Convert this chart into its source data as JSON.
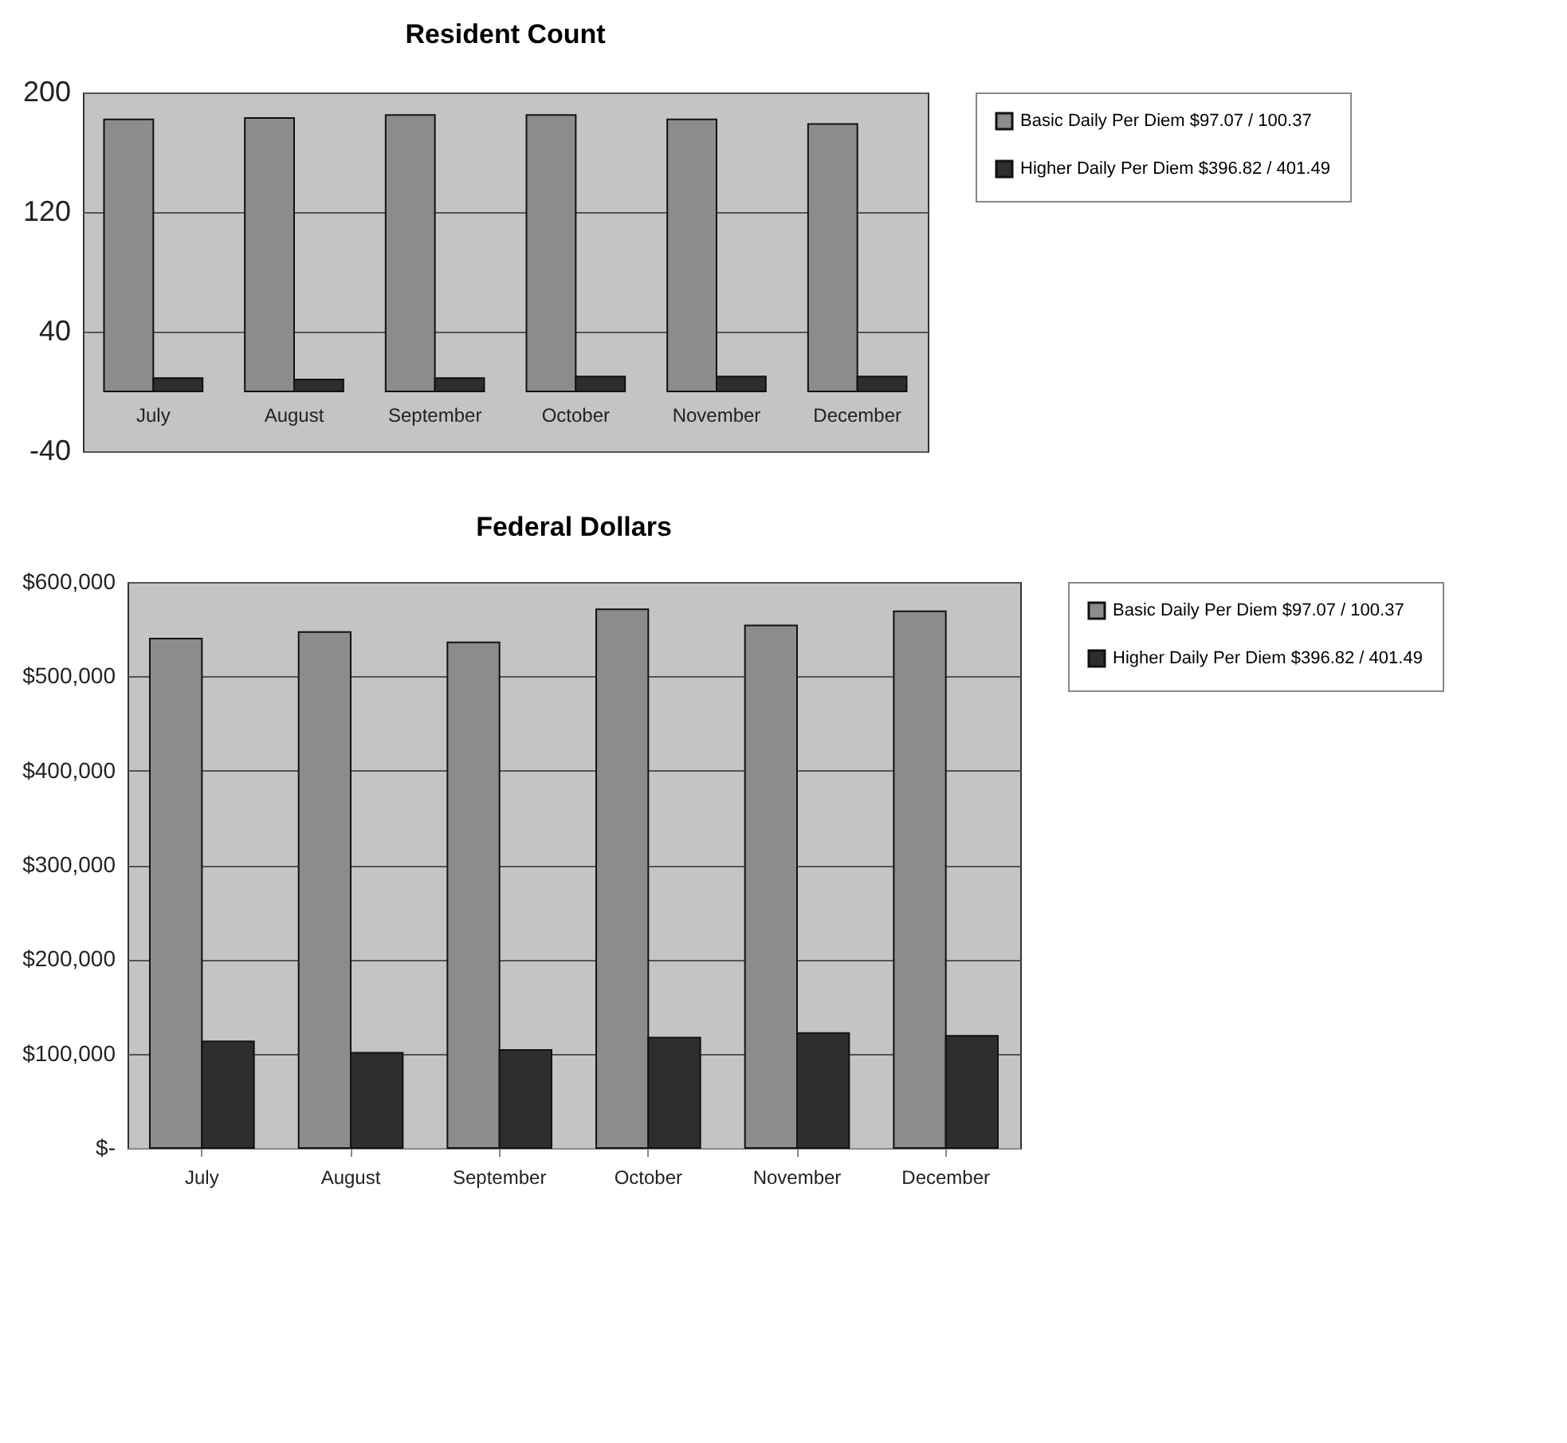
{
  "chart_data": [
    {
      "type": "bar",
      "title": "Resident Count",
      "categories": [
        "July",
        "August",
        "September",
        "October",
        "November",
        "December"
      ],
      "series": [
        {
          "name": "Basic Daily Per Diem $97.07 / 100.37",
          "color": "#8c8c8c",
          "values": [
            182,
            183,
            185,
            185,
            182,
            179
          ]
        },
        {
          "name": "Higher Daily Per Diem $396.82 / 401.49",
          "color": "#2e2e2e",
          "values": [
            9,
            8,
            9,
            10,
            10,
            10
          ]
        }
      ],
      "ylim": [
        -40,
        200
      ],
      "yticks": [
        -40,
        40,
        120,
        200
      ],
      "grid": "y",
      "legend": "right"
    },
    {
      "type": "bar",
      "title": "Federal Dollars",
      "categories": [
        "July",
        "August",
        "September",
        "October",
        "November",
        "December"
      ],
      "series": [
        {
          "name": "Basic Daily Per Diem $97.07 / 100.37",
          "color": "#8c8c8c",
          "values": [
            540000,
            547000,
            536000,
            571000,
            554000,
            569000
          ]
        },
        {
          "name": "Higher Daily Per Diem $396.82 / 401.49",
          "color": "#2e2e2e",
          "values": [
            113000,
            101000,
            104000,
            117000,
            122000,
            119000
          ]
        }
      ],
      "ylim": [
        0,
        600000
      ],
      "yticks": [
        {
          "value": 0,
          "label": "$-"
        },
        {
          "value": 100000,
          "label": "$100,000"
        },
        {
          "value": 200000,
          "label": "$200,000"
        },
        {
          "value": 300000,
          "label": "$300,000"
        },
        {
          "value": 400000,
          "label": "$400,000"
        },
        {
          "value": 500000,
          "label": "$500,000"
        },
        {
          "value": 600000,
          "label": "$600,000"
        }
      ],
      "grid": "y",
      "legend": "right"
    }
  ]
}
